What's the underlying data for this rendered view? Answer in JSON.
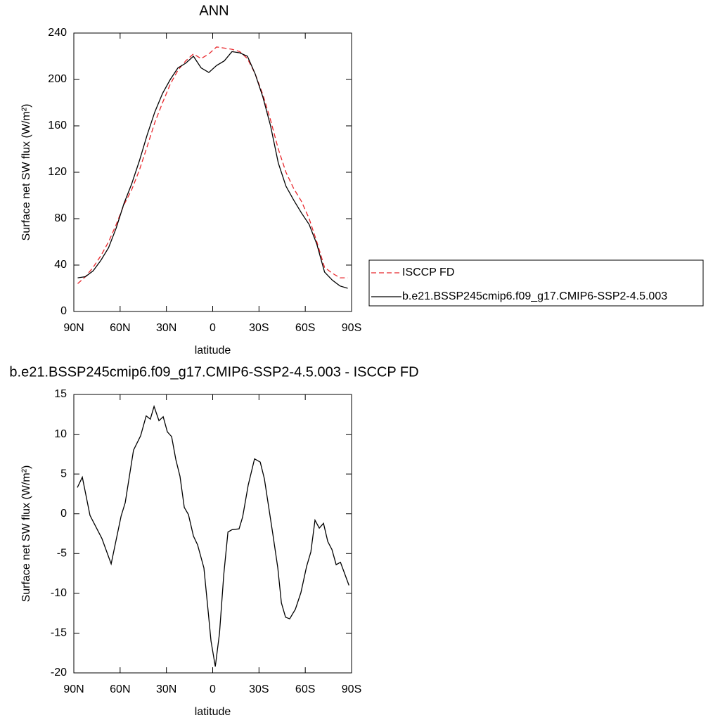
{
  "chart_data": [
    {
      "type": "line",
      "title": "ANN",
      "xlabel": "latitude",
      "ylabel": "Surface net SW flux (W/m²)",
      "x": [
        87.5,
        82.5,
        77.5,
        72.5,
        67.5,
        62.5,
        57.5,
        52.5,
        47.5,
        42.5,
        37.5,
        32.5,
        27.5,
        22.5,
        17.5,
        12.5,
        7.5,
        2.5,
        -2.5,
        -7.5,
        -12.5,
        -17.5,
        -22.5,
        -27.5,
        -32.5,
        -37.5,
        -42.5,
        -47.5,
        -52.5,
        -57.5,
        -62.5,
        -67.5,
        -72.5,
        -77.5,
        -82.5,
        -87.5
      ],
      "series": [
        {
          "name": "ISCCP FD",
          "color": "#e8262b",
          "dashed": true,
          "values": [
            24,
            30,
            38,
            48,
            60,
            75,
            92,
            105,
            122,
            142,
            163,
            180,
            196,
            208,
            216,
            222,
            218,
            222,
            228,
            227,
            226,
            224,
            218,
            205,
            187,
            165,
            140,
            120,
            106,
            95,
            80,
            60,
            38,
            33,
            29,
            29
          ]
        },
        {
          "name": "b.e21.BSSP245cmip6.f09_g17.CMIP6-SSP2-4.5.003",
          "color": "#000000",
          "dashed": false,
          "values": [
            29,
            30,
            35,
            44,
            55,
            72,
            93,
            110,
            130,
            152,
            172,
            188,
            200,
            210,
            214,
            220,
            210,
            206,
            212,
            216,
            224,
            223,
            220,
            205,
            185,
            160,
            128,
            108,
            96,
            85,
            75,
            58,
            34,
            27,
            22,
            20
          ]
        }
      ],
      "xlim": [
        90,
        -90
      ],
      "xticks": [
        {
          "value": 90,
          "label": "90N"
        },
        {
          "value": 60,
          "label": "60N"
        },
        {
          "value": 30,
          "label": "30N"
        },
        0,
        {
          "value": -30,
          "label": "30S"
        },
        {
          "value": -60,
          "label": "60S"
        },
        {
          "value": -90,
          "label": "90S"
        }
      ],
      "ylim": [
        0,
        240
      ],
      "yticks": [
        0,
        40,
        80,
        120,
        160,
        200,
        240
      ],
      "legend": "right"
    },
    {
      "type": "line",
      "title": "b.e21.BSSP245cmip6.f09_g17.CMIP6-SSP2-4.5.003 - ISCCP FD",
      "xlabel": "latitude",
      "ylabel": "Surface net SW flux (W/m²)",
      "x": [
        87.7,
        84.5,
        79.5,
        71.8,
        65.8,
        59.4,
        56.7,
        51.3,
        46.7,
        43.1,
        40.4,
        38.0,
        34.8,
        32.1,
        29.4,
        26.6,
        23.9,
        21.2,
        18.4,
        15.7,
        12.5,
        9.8,
        5.7,
        2.9,
        1.1,
        -1.7,
        -4.4,
        -7.2,
        -9.9,
        -12.6,
        -17.1,
        -19.4,
        -23.0,
        -27.1,
        -30.8,
        -33.5,
        -39.0,
        -42.2,
        -44.5,
        -47.2,
        -49.9,
        -53.6,
        -57.2,
        -60.9,
        -63.6,
        -66.3,
        -69.1,
        -71.8,
        -74.6,
        -77.3,
        -80.0,
        -82.8,
        -85.5,
        -88.3
      ],
      "values": [
        3.3,
        4.6,
        -0.2,
        -3.1,
        -6.3,
        -0.3,
        1.4,
        8,
        9.8,
        12.3,
        11.9,
        13.5,
        11.7,
        12.2,
        10.3,
        9.7,
        6.8,
        4.7,
        0.8,
        -0.1,
        -2.8,
        -3.9,
        -6.8,
        -12.3,
        -16,
        -19.2,
        -15,
        -7.6,
        -2.3,
        -2,
        -1.9,
        -0.4,
        3.6,
        6.9,
        6.5,
        4.4,
        -2.6,
        -6.8,
        -11.2,
        -13,
        -13.2,
        -12,
        -9.9,
        -6.6,
        -4.8,
        -0.8,
        -1.8,
        -1.2,
        -3.5,
        -4.5,
        -6.4,
        -6.1,
        -7.5,
        -9.0
      ],
      "color": "#000000",
      "xlim": [
        90,
        -90
      ],
      "xticks": [
        {
          "value": 90,
          "label": "90N"
        },
        {
          "value": 60,
          "label": "60N"
        },
        {
          "value": 30,
          "label": "30N"
        },
        0,
        {
          "value": -30,
          "label": "30S"
        },
        {
          "value": -60,
          "label": "60S"
        },
        {
          "value": -90,
          "label": "90S"
        }
      ],
      "ylim": [
        -20,
        15
      ],
      "yticks": [
        -20,
        -15,
        -10,
        -5,
        0,
        5,
        10,
        15
      ]
    }
  ]
}
